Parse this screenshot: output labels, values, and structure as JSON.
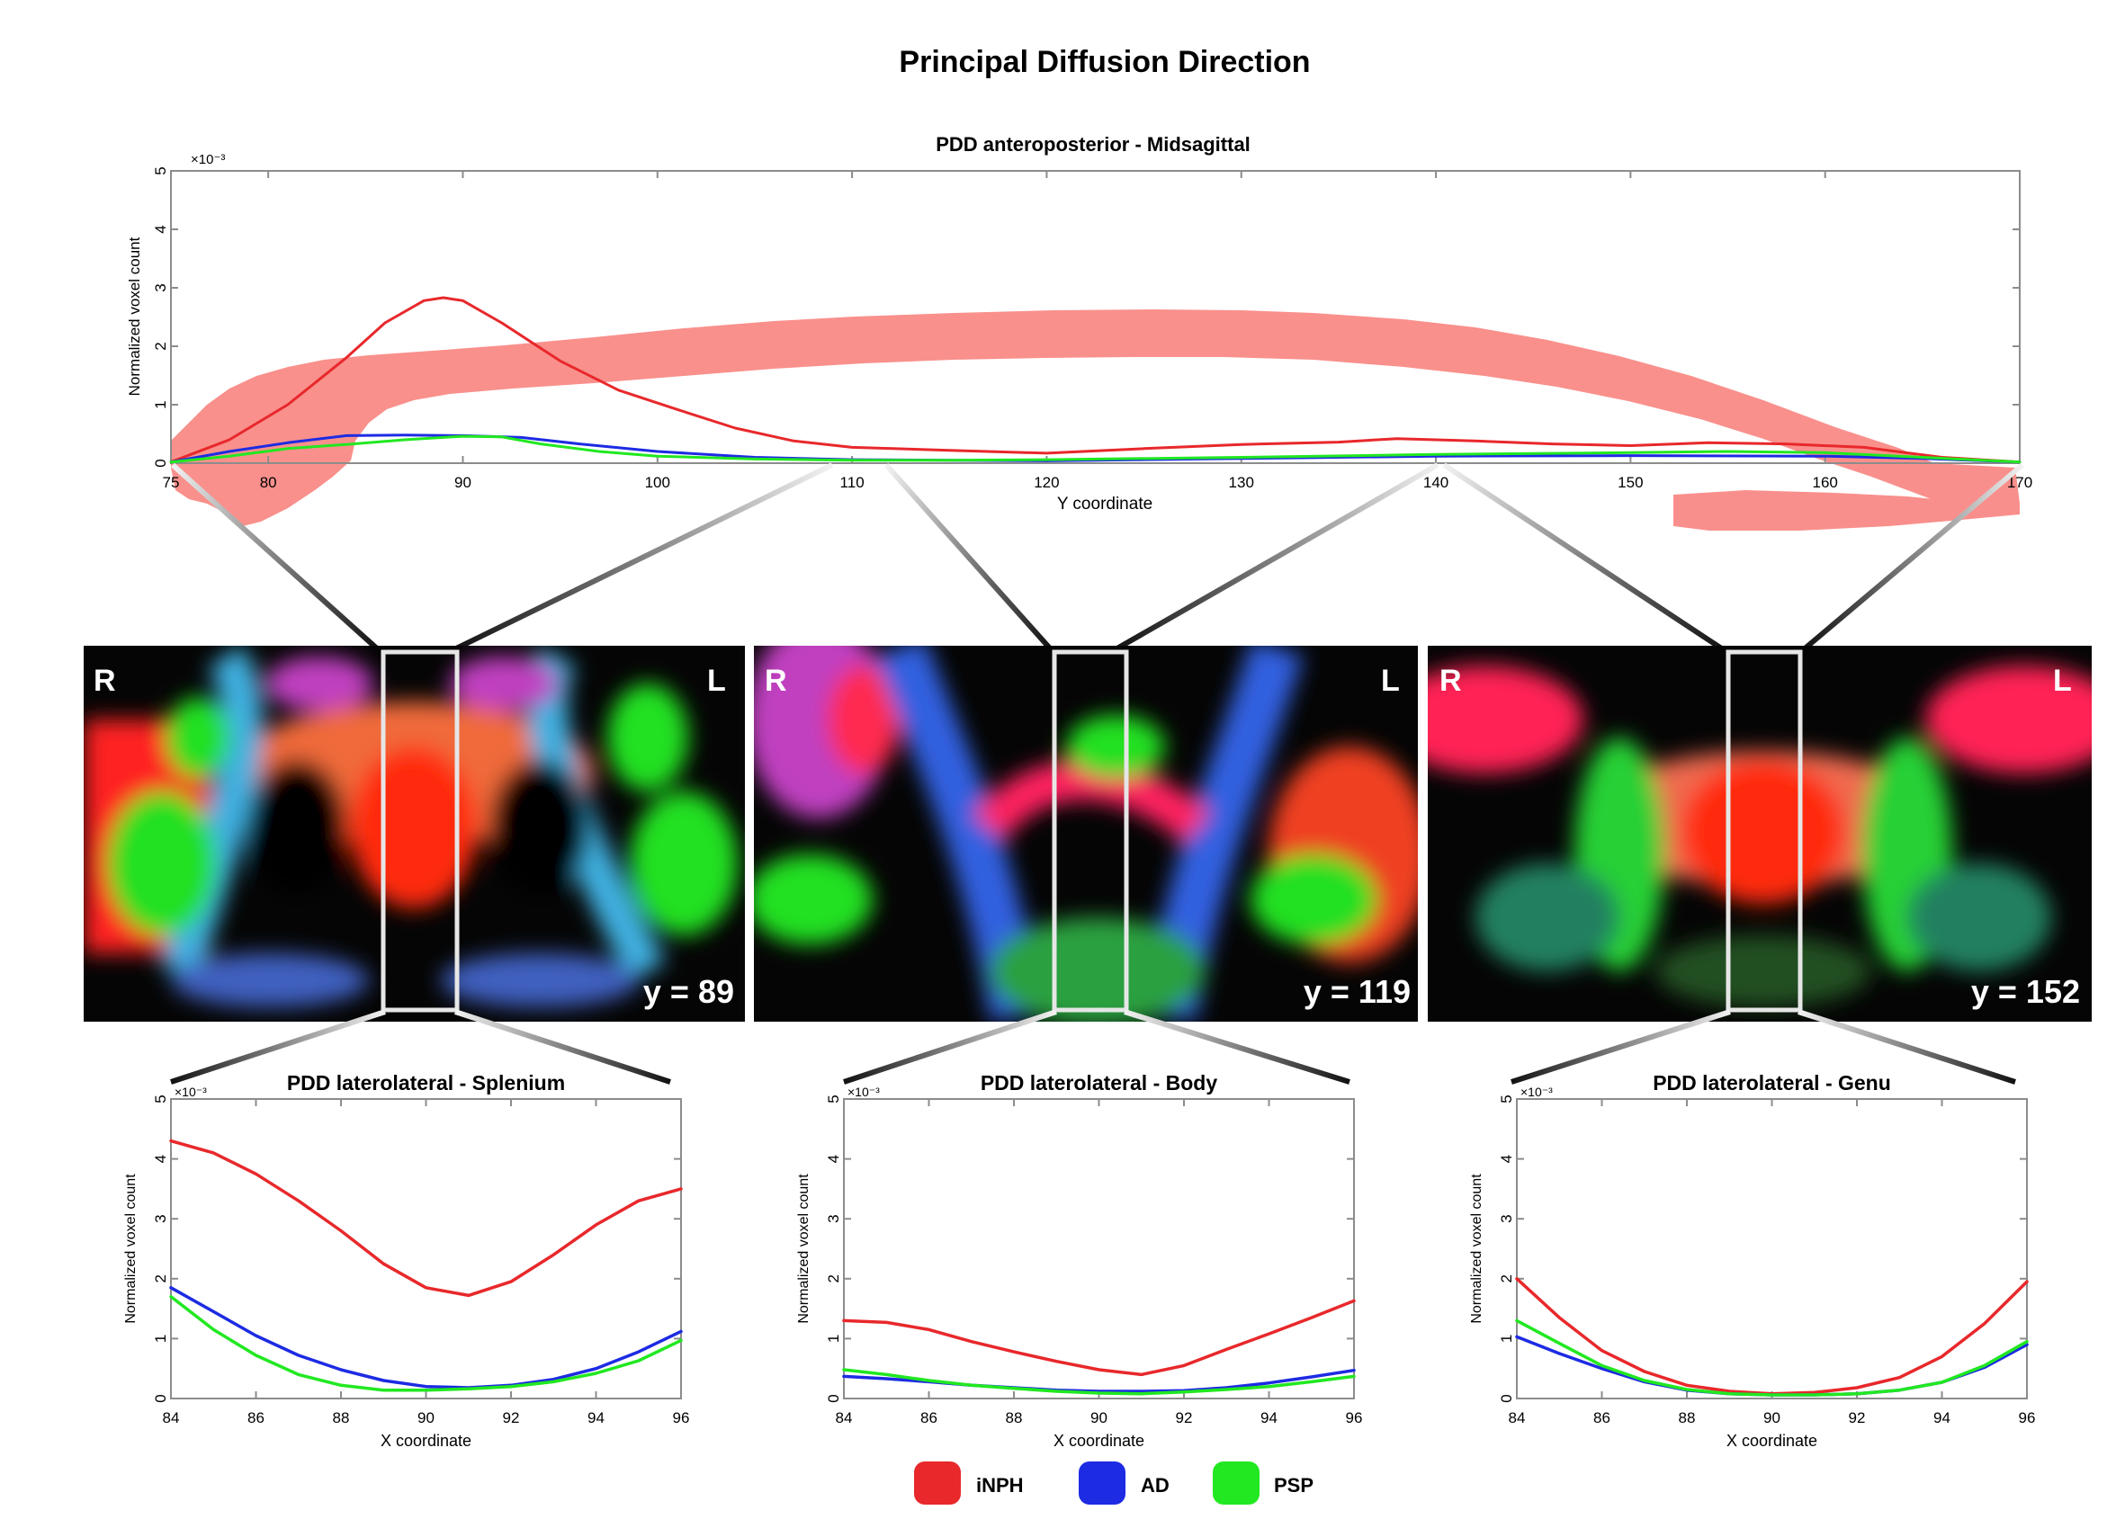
{
  "figure": {
    "title": "Principal Diffusion Direction"
  },
  "legend": [
    {
      "label": "iNPH",
      "color": "#e8282b"
    },
    {
      "label": "AD",
      "color": "#1d2be3"
    },
    {
      "label": "PSP",
      "color": "#21e821"
    }
  ],
  "brain_slices": [
    {
      "orientation_left": "R",
      "orientation_right": "L",
      "slice_label": "y = 89"
    },
    {
      "orientation_left": "R",
      "orientation_right": "L",
      "slice_label": "y = 119"
    },
    {
      "orientation_left": "R",
      "orientation_right": "L",
      "slice_label": "y = 152"
    }
  ],
  "chart_data": [
    {
      "type": "line",
      "title": "PDD anteroposterior - Midsagittal",
      "xlabel": "Y coordinate",
      "ylabel": "Normalized voxel count",
      "y_multiplier": "×10⁻³",
      "xlim": [
        75,
        170
      ],
      "ylim": [
        0,
        5
      ],
      "xticks": [
        75,
        80,
        90,
        100,
        110,
        120,
        130,
        140,
        150,
        160,
        170
      ],
      "yticks": [
        0,
        1,
        2,
        3,
        4,
        5
      ],
      "grid": false,
      "background_overlay": "sagittal corpus callosum mask",
      "series": [
        {
          "name": "iNPH",
          "color": "#e8282b",
          "x": [
            75,
            78,
            81,
            84,
            86,
            88,
            89,
            90,
            92,
            95,
            98,
            101,
            104,
            107,
            110,
            115,
            120,
            125,
            130,
            135,
            138,
            142,
            146,
            150,
            154,
            158,
            162,
            166,
            170
          ],
          "y": [
            0.02,
            0.4,
            1.0,
            1.8,
            2.4,
            2.78,
            2.83,
            2.78,
            2.4,
            1.75,
            1.25,
            0.92,
            0.6,
            0.38,
            0.27,
            0.22,
            0.17,
            0.25,
            0.32,
            0.36,
            0.42,
            0.38,
            0.33,
            0.3,
            0.35,
            0.33,
            0.27,
            0.1,
            0.02
          ]
        },
        {
          "name": "AD",
          "color": "#1d2be3",
          "x": [
            75,
            78,
            81,
            84,
            87,
            90,
            93,
            96,
            100,
            105,
            110,
            115,
            120,
            130,
            140,
            150,
            160,
            165,
            170
          ],
          "y": [
            0.02,
            0.2,
            0.35,
            0.47,
            0.48,
            0.47,
            0.44,
            0.33,
            0.2,
            0.1,
            0.06,
            0.05,
            0.04,
            0.08,
            0.12,
            0.13,
            0.12,
            0.08,
            0.02
          ]
        },
        {
          "name": "PSP",
          "color": "#21e821",
          "x": [
            75,
            78,
            81,
            84,
            87,
            90,
            92,
            94,
            97,
            100,
            105,
            110,
            115,
            120,
            130,
            140,
            150,
            155,
            160,
            165,
            170
          ],
          "y": [
            0.02,
            0.12,
            0.25,
            0.32,
            0.4,
            0.46,
            0.45,
            0.33,
            0.2,
            0.12,
            0.07,
            0.05,
            0.05,
            0.06,
            0.1,
            0.15,
            0.18,
            0.2,
            0.18,
            0.1,
            0.02
          ]
        }
      ]
    },
    {
      "type": "line",
      "title": "PDD laterolateral - Splenium",
      "xlabel": "X coordinate",
      "ylabel": "Normalized voxel count",
      "y_multiplier": "×10⁻³",
      "xlim": [
        84,
        96
      ],
      "ylim": [
        0,
        5
      ],
      "xticks": [
        84,
        86,
        88,
        90,
        92,
        94,
        96
      ],
      "yticks": [
        0,
        1,
        2,
        3,
        4,
        5
      ],
      "grid": false,
      "series": [
        {
          "name": "iNPH",
          "color": "#e8282b",
          "x": [
            84,
            85,
            86,
            87,
            88,
            89,
            90,
            91,
            92,
            93,
            94,
            95,
            96
          ],
          "y": [
            4.3,
            4.1,
            3.75,
            3.3,
            2.8,
            2.25,
            1.85,
            1.72,
            1.95,
            2.4,
            2.9,
            3.3,
            3.5
          ]
        },
        {
          "name": "AD",
          "color": "#1d2be3",
          "x": [
            84,
            85,
            86,
            87,
            88,
            89,
            90,
            91,
            92,
            93,
            94,
            95,
            96
          ],
          "y": [
            1.85,
            1.45,
            1.05,
            0.72,
            0.48,
            0.3,
            0.2,
            0.18,
            0.22,
            0.32,
            0.5,
            0.78,
            1.12
          ]
        },
        {
          "name": "PSP",
          "color": "#21e821",
          "x": [
            84,
            85,
            86,
            87,
            88,
            89,
            90,
            91,
            92,
            93,
            94,
            95,
            96
          ],
          "y": [
            1.7,
            1.15,
            0.72,
            0.4,
            0.22,
            0.14,
            0.14,
            0.16,
            0.2,
            0.28,
            0.42,
            0.63,
            0.97
          ]
        }
      ]
    },
    {
      "type": "line",
      "title": "PDD laterolateral - Body",
      "xlabel": "X coordinate",
      "ylabel": "Normalized voxel count",
      "y_multiplier": "×10⁻³",
      "xlim": [
        84,
        96
      ],
      "ylim": [
        0,
        5
      ],
      "xticks": [
        84,
        86,
        88,
        90,
        92,
        94,
        96
      ],
      "yticks": [
        0,
        1,
        2,
        3,
        4,
        5
      ],
      "grid": false,
      "series": [
        {
          "name": "iNPH",
          "color": "#e8282b",
          "x": [
            84,
            85,
            86,
            87,
            88,
            89,
            90,
            91,
            92,
            93,
            94,
            95,
            96
          ],
          "y": [
            1.3,
            1.27,
            1.15,
            0.95,
            0.78,
            0.62,
            0.48,
            0.4,
            0.55,
            0.82,
            1.08,
            1.35,
            1.63
          ]
        },
        {
          "name": "AD",
          "color": "#1d2be3",
          "x": [
            84,
            85,
            86,
            87,
            88,
            89,
            90,
            91,
            92,
            93,
            94,
            95,
            96
          ],
          "y": [
            0.37,
            0.33,
            0.28,
            0.22,
            0.18,
            0.14,
            0.12,
            0.12,
            0.13,
            0.18,
            0.26,
            0.36,
            0.47
          ]
        },
        {
          "name": "PSP",
          "color": "#21e821",
          "x": [
            84,
            85,
            86,
            87,
            88,
            89,
            90,
            91,
            92,
            93,
            94,
            95,
            96
          ],
          "y": [
            0.48,
            0.4,
            0.3,
            0.22,
            0.17,
            0.12,
            0.09,
            0.08,
            0.11,
            0.15,
            0.2,
            0.28,
            0.37
          ]
        }
      ]
    },
    {
      "type": "line",
      "title": "PDD laterolateral - Genu",
      "xlabel": "X coordinate",
      "ylabel": "Normalized voxel count",
      "y_multiplier": "×10⁻³",
      "xlim": [
        84,
        96
      ],
      "ylim": [
        0,
        5
      ],
      "xticks": [
        84,
        86,
        88,
        90,
        92,
        94,
        96
      ],
      "yticks": [
        0,
        1,
        2,
        3,
        4,
        5
      ],
      "grid": false,
      "series": [
        {
          "name": "iNPH",
          "color": "#e8282b",
          "x": [
            84,
            85,
            86,
            87,
            88,
            89,
            90,
            91,
            92,
            93,
            94,
            95,
            96
          ],
          "y": [
            2.0,
            1.35,
            0.8,
            0.45,
            0.22,
            0.12,
            0.08,
            0.1,
            0.18,
            0.35,
            0.7,
            1.25,
            1.95
          ]
        },
        {
          "name": "AD",
          "color": "#1d2be3",
          "x": [
            84,
            85,
            86,
            87,
            88,
            89,
            90,
            91,
            92,
            93,
            94,
            95,
            96
          ],
          "y": [
            1.03,
            0.75,
            0.5,
            0.28,
            0.14,
            0.08,
            0.06,
            0.06,
            0.08,
            0.14,
            0.27,
            0.52,
            0.9
          ]
        },
        {
          "name": "PSP",
          "color": "#21e821",
          "x": [
            84,
            85,
            86,
            87,
            88,
            89,
            90,
            91,
            92,
            93,
            94,
            95,
            96
          ],
          "y": [
            1.3,
            0.92,
            0.55,
            0.3,
            0.15,
            0.08,
            0.06,
            0.06,
            0.08,
            0.14,
            0.27,
            0.55,
            0.95
          ]
        }
      ]
    }
  ]
}
